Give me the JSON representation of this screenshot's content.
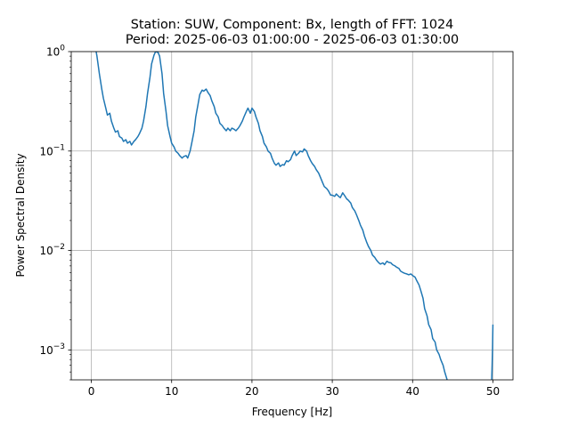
{
  "chart_data": {
    "type": "line",
    "title": "Station: SUW, Component: Bx, length of FFT: 1024",
    "subtitle": "Period: 2025-06-03 01:00:00 - 2025-06-03 01:30:00",
    "xlabel": "Frequency [Hz]",
    "ylabel": "Power Spectral Density",
    "xlim": [
      -2.5,
      52.5
    ],
    "ylim": [
      0.0005,
      1
    ],
    "yscale": "log",
    "grid": true,
    "x_ticks": [
      0,
      10,
      20,
      30,
      40,
      50
    ],
    "x_tick_labels": [
      "0",
      "10",
      "20",
      "30",
      "40",
      "50"
    ],
    "y_ticks": [
      0.001,
      0.01,
      0.1,
      1
    ],
    "y_tick_labels": [
      {
        "base": "10",
        "exp": "−3"
      },
      {
        "base": "10",
        "exp": "−2"
      },
      {
        "base": "10",
        "exp": "−1"
      },
      {
        "base": "10",
        "exp": "0"
      }
    ],
    "series": [
      {
        "color": "#1f77b4",
        "points": [
          [
            0.6,
            1.0
          ],
          [
            0.7,
            0.9
          ],
          [
            1.0,
            0.6
          ],
          [
            1.3,
            0.42
          ],
          [
            1.5,
            0.34
          ],
          [
            1.8,
            0.27
          ],
          [
            2.0,
            0.23
          ],
          [
            2.3,
            0.24
          ],
          [
            2.5,
            0.2
          ],
          [
            2.8,
            0.17
          ],
          [
            3.0,
            0.155
          ],
          [
            3.3,
            0.16
          ],
          [
            3.5,
            0.14
          ],
          [
            3.8,
            0.135
          ],
          [
            4.0,
            0.125
          ],
          [
            4.3,
            0.13
          ],
          [
            4.5,
            0.12
          ],
          [
            4.8,
            0.125
          ],
          [
            5.0,
            0.115
          ],
          [
            5.3,
            0.125
          ],
          [
            5.5,
            0.13
          ],
          [
            5.8,
            0.14
          ],
          [
            6.0,
            0.15
          ],
          [
            6.3,
            0.17
          ],
          [
            6.5,
            0.2
          ],
          [
            6.8,
            0.28
          ],
          [
            7.0,
            0.38
          ],
          [
            7.3,
            0.55
          ],
          [
            7.5,
            0.75
          ],
          [
            7.8,
            0.92
          ],
          [
            8.0,
            1.0
          ],
          [
            8.3,
            0.98
          ],
          [
            8.5,
            0.9
          ],
          [
            8.8,
            0.6
          ],
          [
            9.0,
            0.38
          ],
          [
            9.3,
            0.25
          ],
          [
            9.5,
            0.18
          ],
          [
            9.8,
            0.14
          ],
          [
            10.0,
            0.12
          ],
          [
            10.3,
            0.11
          ],
          [
            10.5,
            0.1
          ],
          [
            10.8,
            0.095
          ],
          [
            11.0,
            0.09
          ],
          [
            11.3,
            0.085
          ],
          [
            11.5,
            0.088
          ],
          [
            11.8,
            0.09
          ],
          [
            12.0,
            0.085
          ],
          [
            12.3,
            0.1
          ],
          [
            12.5,
            0.12
          ],
          [
            12.8,
            0.16
          ],
          [
            13.0,
            0.22
          ],
          [
            13.3,
            0.3
          ],
          [
            13.5,
            0.37
          ],
          [
            13.8,
            0.41
          ],
          [
            14.0,
            0.4
          ],
          [
            14.3,
            0.42
          ],
          [
            14.5,
            0.39
          ],
          [
            14.8,
            0.36
          ],
          [
            15.0,
            0.32
          ],
          [
            15.3,
            0.28
          ],
          [
            15.5,
            0.24
          ],
          [
            15.8,
            0.22
          ],
          [
            16.0,
            0.19
          ],
          [
            16.3,
            0.18
          ],
          [
            16.5,
            0.17
          ],
          [
            16.8,
            0.16
          ],
          [
            17.0,
            0.17
          ],
          [
            17.3,
            0.16
          ],
          [
            17.5,
            0.17
          ],
          [
            17.8,
            0.165
          ],
          [
            18.0,
            0.16
          ],
          [
            18.3,
            0.17
          ],
          [
            18.5,
            0.18
          ],
          [
            18.8,
            0.2
          ],
          [
            19.0,
            0.22
          ],
          [
            19.3,
            0.25
          ],
          [
            19.5,
            0.27
          ],
          [
            19.8,
            0.24
          ],
          [
            20.0,
            0.27
          ],
          [
            20.3,
            0.25
          ],
          [
            20.5,
            0.22
          ],
          [
            20.8,
            0.19
          ],
          [
            21.0,
            0.16
          ],
          [
            21.3,
            0.14
          ],
          [
            21.5,
            0.12
          ],
          [
            21.8,
            0.11
          ],
          [
            22.0,
            0.1
          ],
          [
            22.3,
            0.095
          ],
          [
            22.5,
            0.085
          ],
          [
            22.8,
            0.075
          ],
          [
            23.0,
            0.072
          ],
          [
            23.3,
            0.076
          ],
          [
            23.5,
            0.07
          ],
          [
            23.8,
            0.073
          ],
          [
            24.0,
            0.072
          ],
          [
            24.3,
            0.08
          ],
          [
            24.5,
            0.078
          ],
          [
            24.8,
            0.082
          ],
          [
            25.0,
            0.09
          ],
          [
            25.3,
            0.1
          ],
          [
            25.5,
            0.09
          ],
          [
            25.8,
            0.095
          ],
          [
            26.0,
            0.1
          ],
          [
            26.3,
            0.098
          ],
          [
            26.5,
            0.105
          ],
          [
            26.8,
            0.1
          ],
          [
            27.0,
            0.09
          ],
          [
            27.3,
            0.08
          ],
          [
            27.5,
            0.075
          ],
          [
            27.8,
            0.07
          ],
          [
            28.0,
            0.065
          ],
          [
            28.3,
            0.06
          ],
          [
            28.5,
            0.055
          ],
          [
            28.8,
            0.048
          ],
          [
            29.0,
            0.044
          ],
          [
            29.3,
            0.042
          ],
          [
            29.5,
            0.04
          ],
          [
            29.8,
            0.036
          ],
          [
            30.0,
            0.036
          ],
          [
            30.3,
            0.035
          ],
          [
            30.5,
            0.037
          ],
          [
            30.8,
            0.035
          ],
          [
            31.0,
            0.034
          ],
          [
            31.3,
            0.038
          ],
          [
            31.5,
            0.036
          ],
          [
            31.8,
            0.033
          ],
          [
            32.0,
            0.032
          ],
          [
            32.3,
            0.03
          ],
          [
            32.5,
            0.027
          ],
          [
            32.8,
            0.025
          ],
          [
            33.0,
            0.023
          ],
          [
            33.3,
            0.02
          ],
          [
            33.5,
            0.018
          ],
          [
            33.8,
            0.016
          ],
          [
            34.0,
            0.014
          ],
          [
            34.3,
            0.012
          ],
          [
            34.5,
            0.011
          ],
          [
            34.8,
            0.01
          ],
          [
            35.0,
            0.009
          ],
          [
            35.3,
            0.0085
          ],
          [
            35.5,
            0.008
          ],
          [
            35.8,
            0.0075
          ],
          [
            36.0,
            0.0073
          ],
          [
            36.3,
            0.0075
          ],
          [
            36.5,
            0.0072
          ],
          [
            36.8,
            0.0078
          ],
          [
            37.0,
            0.0076
          ],
          [
            37.3,
            0.0075
          ],
          [
            37.5,
            0.0072
          ],
          [
            37.8,
            0.007
          ],
          [
            38.0,
            0.0068
          ],
          [
            38.3,
            0.0066
          ],
          [
            38.5,
            0.0062
          ],
          [
            38.8,
            0.006
          ],
          [
            39.0,
            0.0059
          ],
          [
            39.3,
            0.0058
          ],
          [
            39.5,
            0.0057
          ],
          [
            39.8,
            0.0058
          ],
          [
            40.0,
            0.0056
          ],
          [
            40.3,
            0.0054
          ],
          [
            40.5,
            0.005
          ],
          [
            40.8,
            0.0045
          ],
          [
            41.0,
            0.004
          ],
          [
            41.3,
            0.0033
          ],
          [
            41.5,
            0.0026
          ],
          [
            41.8,
            0.0022
          ],
          [
            42.0,
            0.0018
          ],
          [
            42.3,
            0.0016
          ],
          [
            42.5,
            0.0013
          ],
          [
            42.8,
            0.0012
          ],
          [
            43.0,
            0.001
          ],
          [
            43.3,
            0.0009
          ],
          [
            43.5,
            0.0008
          ],
          [
            43.8,
            0.0007
          ],
          [
            44.0,
            0.0006
          ],
          [
            44.3,
            0.0005
          ]
        ]
      },
      {
        "color": "#1f77b4",
        "points": [
          [
            49.85,
            0.0005
          ],
          [
            49.9,
            0.0007
          ],
          [
            49.95,
            0.001
          ],
          [
            50.0,
            0.0018
          ]
        ]
      }
    ]
  }
}
